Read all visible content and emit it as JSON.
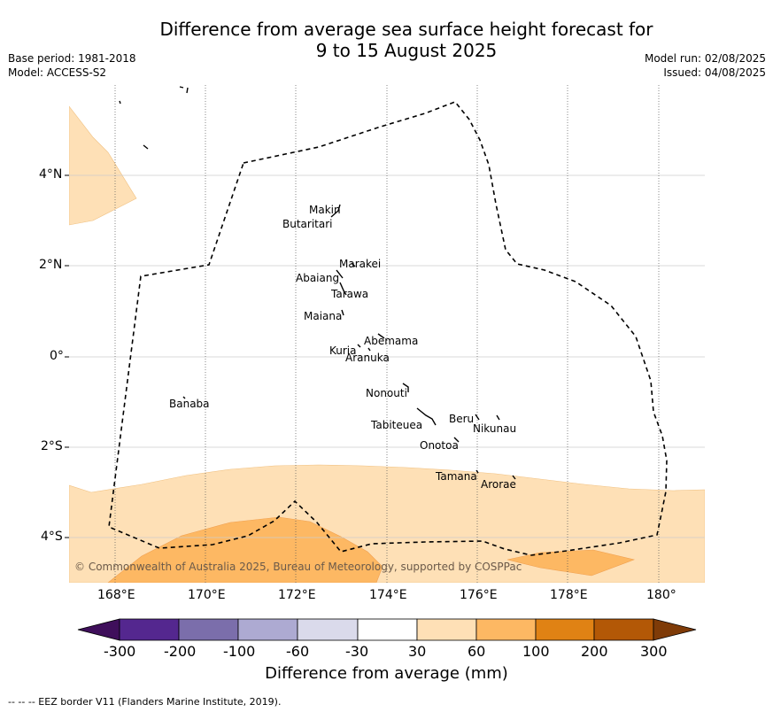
{
  "title_line1": "Difference from average sea surface height forecast for",
  "title_line2": "9 to 15 August 2025",
  "base_period": "Base period: 1981-2018",
  "model": "Model: ACCESS-S2",
  "model_run": "Model run: 02/08/2025",
  "issued": "Issued: 04/08/2025",
  "lat_labels": [
    "4°N",
    "2°N",
    "0°",
    "2°S",
    "4°S"
  ],
  "lon_labels": [
    "168°E",
    "170°E",
    "172°E",
    "174°E",
    "176°E",
    "178°E",
    "180°"
  ],
  "places": [
    "Makin",
    "Butaritari",
    "Marakei",
    "Abaiang",
    "Tarawa",
    "Maiana",
    "Abemama",
    "Kuria",
    "Aranuka",
    "Nonouti",
    "Banaba",
    "Tabiteuea",
    "Beru",
    "Nikunau",
    "Onotoa",
    "Tamana",
    "Arorae"
  ],
  "credit": "© Commonwealth of Australia 2025, Bureau of Meteorology, supported by COSPPac",
  "colorbar": {
    "ticks": [
      "-300",
      "-200",
      "-100",
      "-60",
      "-30",
      "30",
      "60",
      "100",
      "200",
      "300"
    ],
    "colors": [
      "#3f0f5b",
      "#54278f",
      "#7b6eab",
      "#adaad2",
      "#dadaeb",
      "#ffffff",
      "#fee0b6",
      "#fdb863",
      "#e08214",
      "#b35806",
      "#7f3b08"
    ],
    "title": "Difference from average (mm)"
  },
  "footnote": "--  --  -- EEZ border V11 (Flanders Marine Institute, 2019)."
}
